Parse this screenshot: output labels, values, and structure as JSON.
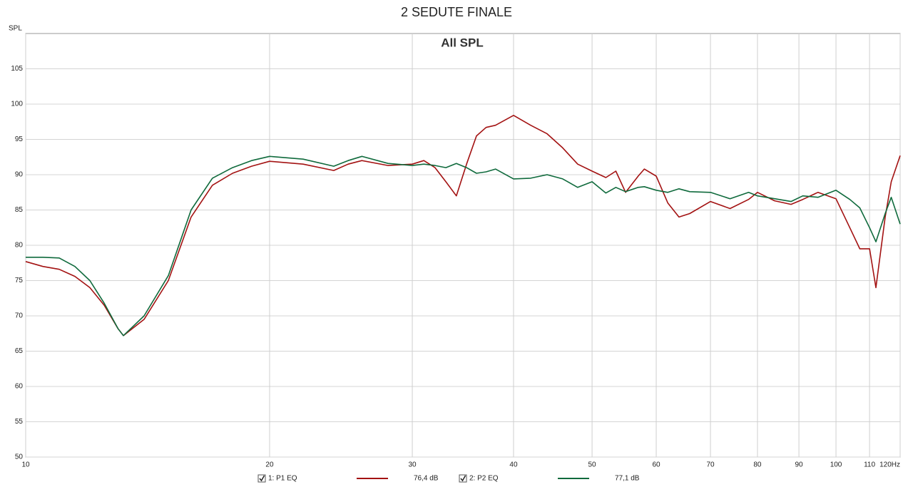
{
  "chart_data": {
    "type": "line",
    "title": "2 SEDUTE FINALE",
    "subtitle": "All SPL",
    "y_label": "SPL",
    "log_x": true,
    "grid": true,
    "x": [
      10,
      10.5,
      11,
      11.5,
      12,
      12.5,
      13,
      13.2,
      14,
      15,
      16,
      17,
      18,
      19,
      20,
      22,
      24,
      25,
      26,
      28,
      30,
      31,
      32,
      33,
      34,
      35,
      36,
      37,
      38,
      40,
      42,
      44,
      46,
      48,
      50,
      52,
      53.5,
      55,
      57,
      58,
      60,
      62,
      64,
      66,
      70,
      74,
      78,
      80,
      84,
      88,
      91,
      95,
      100,
      104,
      107,
      110,
      112,
      115,
      117,
      120
    ],
    "series": [
      {
        "name": "1: P1 EQ",
        "level": "76,4 dB",
        "color": "#a31212",
        "values": [
          77.7,
          77.0,
          76.6,
          75.6,
          74.0,
          71.5,
          68.2,
          67.2,
          69.5,
          75.0,
          84.0,
          88.5,
          90.2,
          91.2,
          91.9,
          91.5,
          90.6,
          91.5,
          92.0,
          91.3,
          91.5,
          92.0,
          91.0,
          89.0,
          87.0,
          91.5,
          95.5,
          96.7,
          97.0,
          98.4,
          97.0,
          95.8,
          93.8,
          91.5,
          90.5,
          89.6,
          90.5,
          87.5,
          89.8,
          90.8,
          89.8,
          86.0,
          84.0,
          84.5,
          86.2,
          85.2,
          86.5,
          87.5,
          86.3,
          85.8,
          86.5,
          87.5,
          86.6,
          82.5,
          79.5,
          79.5,
          74.0,
          84.0,
          89.0,
          92.7
        ]
      },
      {
        "name": "2: P2 EQ",
        "level": "77,1 dB",
        "color": "#0f6a3c",
        "values": [
          78.3,
          78.3,
          78.2,
          77.0,
          75.0,
          71.8,
          68.2,
          67.2,
          70.0,
          75.7,
          85.0,
          89.5,
          91.0,
          92.0,
          92.6,
          92.2,
          91.2,
          92.0,
          92.6,
          91.6,
          91.3,
          91.5,
          91.3,
          91.0,
          91.6,
          91.0,
          90.2,
          90.4,
          90.8,
          89.4,
          89.5,
          90.0,
          89.4,
          88.2,
          89.0,
          87.4,
          88.2,
          87.6,
          88.2,
          88.3,
          87.8,
          87.5,
          88.0,
          87.6,
          87.5,
          86.6,
          87.5,
          87.0,
          86.6,
          86.2,
          87.0,
          86.8,
          87.8,
          86.5,
          85.3,
          82.5,
          80.5,
          84.5,
          86.8,
          83.0
        ]
      }
    ],
    "xlim": [
      10,
      120
    ],
    "xticks": [
      10,
      20,
      30,
      40,
      50,
      60,
      70,
      80,
      90,
      100,
      110,
      {
        "value": 120,
        "label": "120Hz"
      }
    ],
    "ylim": [
      50,
      110
    ],
    "yticks": [
      50,
      55,
      60,
      65,
      70,
      75,
      80,
      85,
      90,
      95,
      100,
      105
    ]
  }
}
